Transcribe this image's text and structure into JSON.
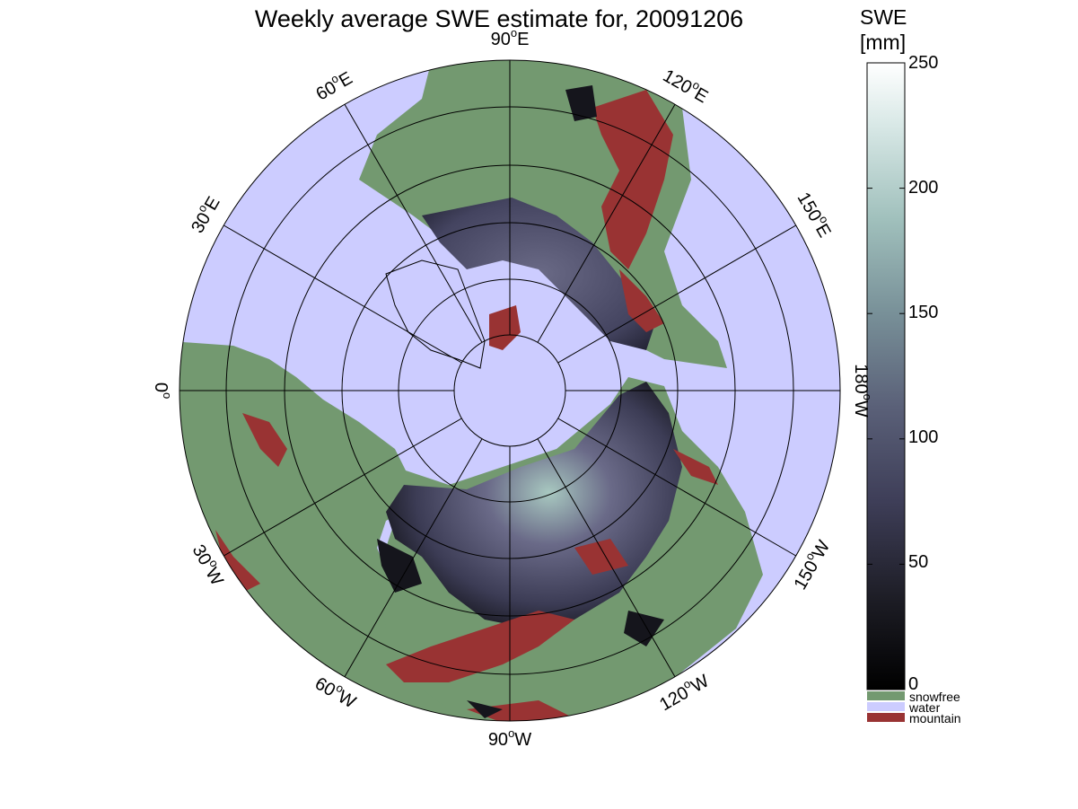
{
  "title": "Weekly average SWE estimate for, 20091206",
  "map": {
    "projection": "north-polar-stereographic",
    "longitude_labels": [
      {
        "text": "90°W",
        "deg": "90",
        "hemi": "W"
      },
      {
        "text": "120°W",
        "deg": "120",
        "hemi": "W"
      },
      {
        "text": "150°W",
        "deg": "150",
        "hemi": "W"
      },
      {
        "text": "180°W",
        "deg": "180",
        "hemi": "W"
      },
      {
        "text": "150°E",
        "deg": "150",
        "hemi": "E"
      },
      {
        "text": "120°E",
        "deg": "120",
        "hemi": "E"
      },
      {
        "text": "90°E",
        "deg": "90",
        "hemi": "E"
      },
      {
        "text": "60°E",
        "deg": "60",
        "hemi": "E"
      },
      {
        "text": "30°E",
        "deg": "30",
        "hemi": "E"
      },
      {
        "text": "0°",
        "deg": "0",
        "hemi": ""
      },
      {
        "text": "30°W",
        "deg": "30",
        "hemi": "W"
      },
      {
        "text": "60°W",
        "deg": "60",
        "hemi": "W"
      }
    ],
    "colors": {
      "water": "#ccccff",
      "snowfree": "#739970",
      "mountain": "#993333",
      "swe_low": "#0d0d12",
      "swe_mid": "#4a4a66",
      "swe_high": "#a8c8c0"
    }
  },
  "colorbar": {
    "label_line1": "SWE",
    "label_line2": "[mm]",
    "min": 0,
    "max": 250,
    "ticks": [
      "0",
      "50",
      "100",
      "150",
      "200",
      "250"
    ],
    "gradient": [
      "#000000",
      "#1c1c24",
      "#3e3e58",
      "#5a6078",
      "#789098",
      "#a0c0bc",
      "#d8e8e6",
      "#ffffff"
    ]
  },
  "legend": [
    {
      "label": "snowfree",
      "color": "#739970"
    },
    {
      "label": "water",
      "color": "#ccccff"
    },
    {
      "label": "mountain",
      "color": "#993333"
    }
  ]
}
